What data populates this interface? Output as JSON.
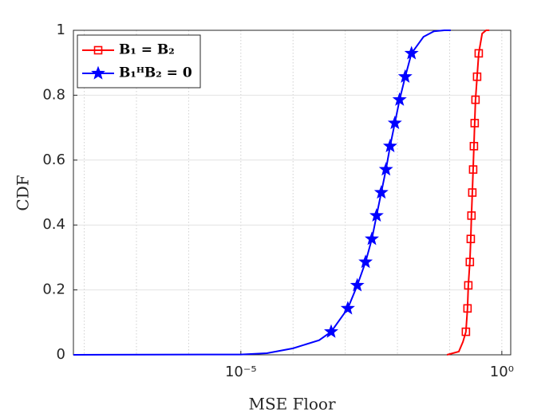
{
  "chart_data": {
    "type": "line",
    "x_label": "MSE Floor",
    "y_label": "CDF",
    "x_log": true,
    "xlim": [
      6.2e-09,
      1.48
    ],
    "ylim": [
      0,
      1
    ],
    "xticks": [
      {
        "value": 1e-05,
        "label": "10⁻⁵"
      },
      {
        "value": 1,
        "label": "10⁰"
      }
    ],
    "x_grid_values": [
      1e-08,
      1e-07,
      1e-06,
      1e-05,
      0.0001,
      0.001,
      0.01,
      0.1,
      1
    ],
    "yticks": [
      0,
      0.2,
      0.4,
      0.6,
      0.8,
      1
    ],
    "grid": true,
    "legend": "upper left",
    "series": [
      {
        "name": "B₁ = B₂",
        "color": "#ff0000",
        "marker": "square",
        "x": [
          0.089,
          0.15,
          0.18,
          0.205,
          0.22,
          0.228,
          0.244,
          0.254,
          0.262,
          0.272,
          0.282,
          0.292,
          0.302,
          0.313,
          0.336,
          0.361,
          0.42,
          0.5,
          0.575
        ],
        "values": [
          0,
          0.01,
          0.04,
          0.071,
          0.143,
          0.214,
          0.286,
          0.357,
          0.429,
          0.5,
          0.571,
          0.643,
          0.714,
          0.786,
          0.857,
          0.929,
          0.99,
          1,
          1
        ],
        "marker_x": [
          0.205,
          0.22,
          0.228,
          0.244,
          0.254,
          0.262,
          0.272,
          0.282,
          0.292,
          0.302,
          0.313,
          0.336,
          0.361
        ],
        "marker_values": [
          0.071,
          0.143,
          0.214,
          0.286,
          0.357,
          0.429,
          0.5,
          0.571,
          0.643,
          0.714,
          0.786,
          0.857,
          0.929
        ]
      },
      {
        "name": "B₁ᴴB₂ = 0",
        "color": "#0000ff",
        "marker": "star",
        "x": [
          6.2e-09,
          1e-05,
          3.16e-05,
          0.0001,
          0.000316,
          0.000537,
          0.00112,
          0.0017,
          0.00245,
          0.00324,
          0.00398,
          0.0049,
          0.00603,
          0.00724,
          0.00891,
          0.011,
          0.0141,
          0.0186,
          0.0316,
          0.05,
          0.079,
          0.105
        ],
        "values": [
          0,
          0.001,
          0.005,
          0.02,
          0.045,
          0.071,
          0.143,
          0.214,
          0.286,
          0.357,
          0.429,
          0.5,
          0.571,
          0.643,
          0.714,
          0.786,
          0.857,
          0.929,
          0.98,
          0.997,
          1,
          1
        ],
        "marker_x": [
          0.000537,
          0.00112,
          0.0017,
          0.00245,
          0.00324,
          0.00398,
          0.0049,
          0.00603,
          0.00724,
          0.00891,
          0.011,
          0.0141,
          0.0186
        ],
        "marker_values": [
          0.071,
          0.143,
          0.214,
          0.286,
          0.357,
          0.429,
          0.5,
          0.571,
          0.643,
          0.714,
          0.786,
          0.857,
          0.929
        ]
      }
    ]
  }
}
